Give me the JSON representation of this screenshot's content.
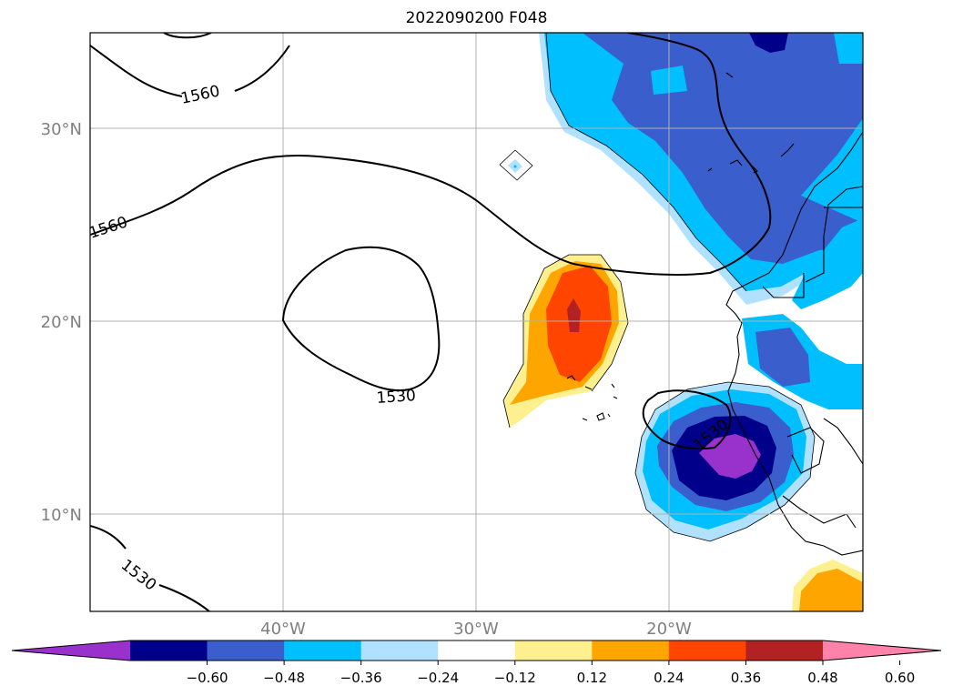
{
  "title": "2022090200 F048",
  "map": {
    "lat_ticks": [
      "30°N",
      "20°N",
      "10°N"
    ],
    "lon_ticks": [
      "40°W",
      "30°W",
      "20°W"
    ],
    "contour_labels": [
      "1560",
      "1560",
      "1530",
      "1530",
      "1530"
    ]
  },
  "colorbar": {
    "ticks": [
      "−0.60",
      "−0.48",
      "−0.36",
      "−0.24",
      "−0.12",
      "0.12",
      "0.24",
      "0.36",
      "0.48",
      "0.60"
    ],
    "colors": [
      "#9932cc",
      "#00008b",
      "#3a5fcd",
      "#00bfff",
      "#b0e2ff",
      "#ffffff",
      "#fff08f",
      "#ffa500",
      "#ff4500",
      "#b22222",
      "#ff82ab"
    ]
  }
}
